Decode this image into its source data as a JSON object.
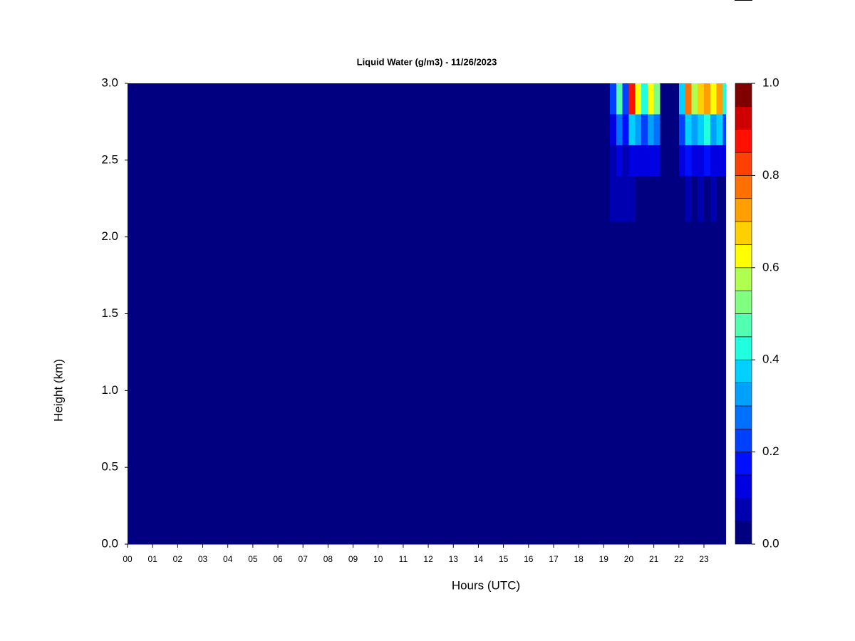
{
  "chart_data": {
    "type": "heatmap",
    "title": "Liquid Water (g/m3) - 11/26/2023",
    "x_label": "Hours (UTC)",
    "y_label": "Height (km)",
    "x_edges": [
      0,
      18.75,
      19.25,
      19.5,
      19.75,
      20,
      20.25,
      20.5,
      20.75,
      21,
      21.25,
      21.5,
      22,
      22.25,
      22.5,
      22.75,
      23,
      23.25,
      23.5,
      23.75,
      23.87
    ],
    "y_edges": [
      0,
      1,
      1.3,
      1.7,
      2.1,
      2.4,
      2.6,
      2.8,
      3.0
    ],
    "z": [
      [
        0,
        0,
        0,
        0,
        0,
        0,
        0,
        0,
        0,
        0,
        0,
        0,
        0,
        0,
        0,
        0,
        0,
        0,
        0,
        0
      ],
      [
        0,
        0,
        0,
        0,
        0.03,
        0,
        0,
        0,
        0,
        0,
        0,
        0,
        0,
        0,
        0,
        0,
        0,
        0,
        0,
        0
      ],
      [
        0,
        0,
        0.03,
        0,
        0.03,
        0,
        0,
        0,
        0,
        0,
        0,
        0,
        0,
        0,
        0,
        0,
        0,
        0,
        0,
        0
      ],
      [
        0,
        0,
        0,
        0,
        0.03,
        0,
        0,
        0,
        0,
        0,
        0,
        0,
        0,
        0,
        0,
        0,
        0,
        0,
        0,
        0
      ],
      [
        0,
        0,
        0.05,
        0.05,
        0.08,
        0.05,
        0,
        0,
        0,
        0,
        0,
        0,
        0,
        0.05,
        0,
        0.05,
        0,
        0.05,
        0,
        0
      ],
      [
        0,
        0,
        0.08,
        0.1,
        0.08,
        0.1,
        0.12,
        0.1,
        0.1,
        0.1,
        0,
        0,
        0.1,
        0.15,
        0.12,
        0.12,
        0.15,
        0.12,
        0.12,
        0.1
      ],
      [
        0,
        0,
        0.12,
        0.25,
        0.15,
        0.35,
        0.3,
        0.2,
        0.3,
        0.25,
        0,
        0,
        0.2,
        0.35,
        0.3,
        0.35,
        0.4,
        0.3,
        0.35,
        0.2
      ],
      [
        0,
        0,
        0.2,
        0.45,
        0.2,
        0.85,
        0.6,
        0.4,
        0.6,
        0.5,
        0,
        0,
        0.35,
        0.75,
        0.55,
        0.65,
        0.7,
        0.6,
        0.7,
        0.4
      ]
    ],
    "levels": [
      0,
      0.05,
      0.1,
      0.15,
      0.2,
      0.25,
      0.3,
      0.35,
      0.4,
      0.45,
      0.5,
      0.55,
      0.6,
      0.65,
      0.7,
      0.75,
      0.8,
      0.85,
      0.9,
      0.95,
      1.0
    ],
    "colors": [
      "#000080",
      "#0000b0",
      "#0000e0",
      "#0010ff",
      "#0040ff",
      "#0070ff",
      "#00a0ff",
      "#00d0ff",
      "#20ffe0",
      "#50ffb0",
      "#80ff80",
      "#b0ff50",
      "#ffff00",
      "#ffd000",
      "#ffa000",
      "#ff7000",
      "#ff4000",
      "#ff1000",
      "#d00000",
      "#800000"
    ],
    "xlim": [
      0,
      23.87
    ],
    "ylim": [
      0,
      3.0
    ],
    "xticks": [
      {
        "value": 0,
        "label": "00"
      },
      {
        "value": 1,
        "label": "01"
      },
      {
        "value": 2,
        "label": "02"
      },
      {
        "value": 3,
        "label": "03"
      },
      {
        "value": 4,
        "label": "04"
      },
      {
        "value": 5,
        "label": "05"
      },
      {
        "value": 6,
        "label": "06"
      },
      {
        "value": 7,
        "label": "07"
      },
      {
        "value": 8,
        "label": "08"
      },
      {
        "value": 9,
        "label": "09"
      },
      10,
      11,
      12,
      13,
      14,
      15,
      16,
      17,
      18,
      19,
      20,
      21,
      22,
      23
    ],
    "yticks": [
      {
        "value": 0,
        "label": "0.0"
      },
      0.5,
      {
        "value": 1,
        "label": "1.0"
      },
      1.5,
      {
        "value": 2,
        "label": "2.0"
      },
      2.5,
      {
        "value": 3,
        "label": "3.0"
      }
    ],
    "cticks": [
      {
        "value": 0,
        "label": "0.0"
      },
      0.2,
      0.4,
      0.6,
      0.8,
      {
        "value": 1,
        "label": "1.0"
      }
    ]
  }
}
